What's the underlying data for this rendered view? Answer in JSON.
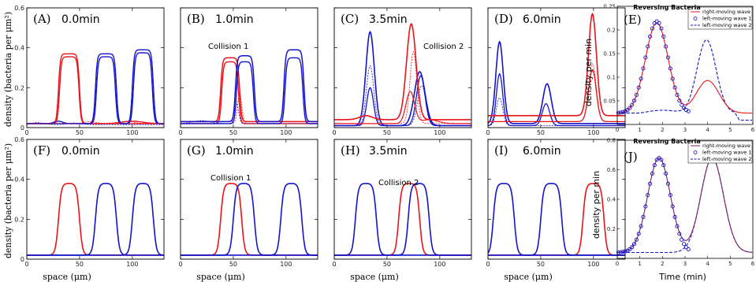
{
  "colors": {
    "red": "#e8141b",
    "blue": "#1414c8",
    "purple": "#7a1f6a",
    "axis": "#000000"
  },
  "left_axes": {
    "ylabel": "density (bacteria per μm²)",
    "xlabel": "space (μm)",
    "y_ticks": [
      "0",
      "0.2",
      "0.4",
      "0.6"
    ],
    "x_ticks": [
      "0",
      "50",
      "100"
    ],
    "xlim": [
      0,
      130
    ],
    "ylim": [
      0,
      0.6
    ]
  },
  "right_axes": {
    "ylabel": "density per min",
    "xlabel": "Time (min)",
    "x_ticks": [
      "0",
      "1",
      "2",
      "3",
      "4",
      "5",
      "6"
    ],
    "top_y_ticks": [
      "0.05",
      "0.1",
      "0.15",
      "0.2",
      "0.25"
    ],
    "bottom_y_ticks": [
      "0.2",
      "0.4",
      "0.6",
      "0.8"
    ]
  },
  "panels": [
    {
      "label": "(A)",
      "time": "0.0min",
      "note": ""
    },
    {
      "label": "(B)",
      "time": "1.0min",
      "note": "Collision 1"
    },
    {
      "label": "(C)",
      "time": "3.5min",
      "note": "Collision 2"
    },
    {
      "label": "(D)",
      "time": "6.0min",
      "note": ""
    },
    {
      "label": "(F)",
      "time": "0.0min",
      "note": ""
    },
    {
      "label": "(G)",
      "time": "1.0min",
      "note": "Collision 1"
    },
    {
      "label": "(H)",
      "time": "3.5min",
      "note": "Collision 2"
    },
    {
      "label": "(I)",
      "time": "6.0min",
      "note": ""
    }
  ],
  "right_panels": [
    {
      "label": "(E)",
      "title": "Reversing Bacteria"
    },
    {
      "label": "(J)",
      "title": "Reversing Bacteria"
    }
  ],
  "legend": {
    "entries": [
      "right-moving wave",
      "left-moving wave 1",
      "left-moving wave 2"
    ]
  },
  "chart_data": [
    {
      "type": "line",
      "panel": "F",
      "xlim": [
        0,
        130
      ],
      "ylim": [
        0,
        0.6
      ],
      "series": [
        {
          "color": "red",
          "pulses": [
            [
              30,
              50
            ]
          ]
        },
        {
          "color": "blue",
          "pulses": [
            [
              65,
              85
            ],
            [
              100,
              120
            ]
          ]
        }
      ]
    },
    {
      "type": "line",
      "panel": "G",
      "xlim": [
        0,
        130
      ],
      "ylim": [
        0,
        0.6
      ],
      "series": [
        {
          "color": "red",
          "pulses": [
            [
              38,
              58
            ]
          ]
        },
        {
          "color": "blue",
          "pulses": [
            [
              50,
              70
            ],
            [
              95,
              115
            ]
          ]
        }
      ]
    },
    {
      "type": "line",
      "panel": "H",
      "xlim": [
        0,
        130
      ],
      "ylim": [
        0,
        0.6
      ],
      "series": [
        {
          "color": "red",
          "pulses": [
            [
              61,
              81
            ]
          ]
        },
        {
          "color": "blue",
          "pulses": [
            [
              20,
              40
            ],
            [
              70,
              90
            ]
          ]
        }
      ]
    },
    {
      "type": "line",
      "panel": "I",
      "xlim": [
        0,
        130
      ],
      "ylim": [
        0,
        0.6
      ],
      "series": [
        {
          "color": "red",
          "pulses": [
            [
              90,
              110
            ]
          ]
        },
        {
          "color": "blue",
          "pulses": [
            [
              5,
              25
            ],
            [
              50,
              70
            ]
          ]
        }
      ]
    },
    {
      "type": "line",
      "panel": "E",
      "xlim": [
        0,
        6
      ],
      "ylim": [
        0,
        0.25
      ],
      "series": [
        {
          "color": "red",
          "name": "right-moving wave",
          "peaks": [
            [
              1.75,
              0.215,
              0.5
            ],
            [
              4.0,
              0.093,
              0.5
            ]
          ]
        },
        {
          "color": "blue",
          "name": "left-moving wave 1",
          "peaks": [
            [
              1.75,
              0.218,
              0.5
            ]
          ]
        },
        {
          "color": "blue",
          "name": "left-moving wave 2",
          "peaks": [
            [
              3.95,
              0.18,
              0.5
            ]
          ]
        }
      ]
    },
    {
      "type": "line",
      "panel": "J",
      "xlim": [
        0,
        6
      ],
      "ylim": [
        0,
        0.8
      ],
      "series": [
        {
          "color": "red",
          "name": "right-moving wave",
          "peaks": [
            [
              1.85,
              0.68,
              0.5
            ],
            [
              4.2,
              0.68,
              0.5
            ]
          ]
        },
        {
          "color": "blue",
          "name": "left-moving wave 1",
          "peaks": [
            [
              1.85,
              0.68,
              0.5
            ]
          ]
        },
        {
          "color": "blue",
          "name": "left-moving wave 2",
          "peaks": [
            [
              4.2,
              0.68,
              0.5
            ]
          ]
        }
      ]
    }
  ]
}
